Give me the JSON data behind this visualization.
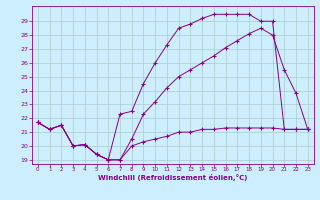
{
  "xlabel": "Windchill (Refroidissement éolien,°C)",
  "background_color": "#cceeff",
  "line_color": "#880088",
  "grid_color": "#aacccc",
  "x_ticks": [
    0,
    1,
    2,
    3,
    4,
    5,
    6,
    7,
    8,
    9,
    10,
    11,
    12,
    13,
    14,
    15,
    16,
    17,
    18,
    19,
    20,
    21,
    22,
    23
  ],
  "y_ticks": [
    19,
    20,
    21,
    22,
    23,
    24,
    25,
    26,
    27,
    28,
    29
  ],
  "ylim": [
    18.7,
    30.1
  ],
  "xlim": [
    -0.5,
    23.5
  ],
  "line1_x": [
    0,
    1,
    2,
    3,
    4,
    5,
    6,
    7,
    8,
    9,
    10,
    11,
    12,
    13,
    14,
    15,
    16,
    17,
    18,
    19,
    20,
    21,
    22,
    23
  ],
  "line1_y": [
    21.7,
    21.2,
    21.5,
    20.0,
    20.1,
    19.4,
    19.0,
    19.0,
    20.5,
    22.3,
    23.2,
    24.2,
    25.0,
    25.5,
    26.0,
    26.5,
    27.1,
    27.6,
    28.1,
    28.5,
    28.0,
    25.5,
    23.8,
    21.2
  ],
  "line2_x": [
    0,
    1,
    2,
    3,
    4,
    5,
    6,
    7,
    8,
    9,
    10,
    11,
    12,
    13,
    14,
    15,
    16,
    17,
    18,
    19,
    20,
    21,
    22,
    23
  ],
  "line2_y": [
    21.7,
    21.2,
    21.5,
    20.0,
    20.1,
    19.4,
    19.0,
    22.3,
    22.5,
    24.5,
    26.0,
    27.3,
    28.5,
    28.8,
    29.2,
    29.5,
    29.5,
    29.5,
    29.5,
    29.0,
    29.0,
    21.2,
    21.2,
    21.2
  ],
  "line3_x": [
    0,
    1,
    2,
    3,
    4,
    5,
    6,
    7,
    8,
    9,
    10,
    11,
    12,
    13,
    14,
    15,
    16,
    17,
    18,
    19,
    20,
    21,
    22,
    23
  ],
  "line3_y": [
    21.7,
    21.2,
    21.5,
    20.0,
    20.1,
    19.4,
    19.0,
    19.0,
    20.0,
    20.3,
    20.5,
    20.7,
    21.0,
    21.0,
    21.2,
    21.2,
    21.3,
    21.3,
    21.3,
    21.3,
    21.3,
    21.2,
    21.2,
    21.2
  ]
}
